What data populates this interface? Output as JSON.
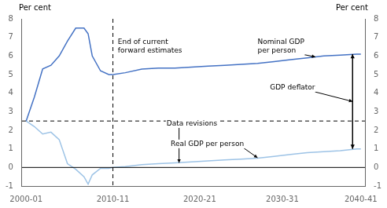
{
  "chart_data": {
    "type": "line",
    "ylabel": "Per cent",
    "y2label": "Per cent",
    "xlim": [
      -0.5,
      41
    ],
    "xticks": [
      {
        "value": 0,
        "label": "2000-01"
      },
      {
        "value": 10.5,
        "label": "2010-11"
      },
      {
        "value": 21,
        "label": "2020-21"
      },
      {
        "value": 31,
        "label": "2030-31"
      },
      {
        "value": 40.5,
        "label": "2040-41"
      }
    ],
    "ylim": [
      -1,
      8
    ],
    "yticks": [
      -1,
      0,
      1,
      2,
      3,
      4,
      5,
      6,
      7,
      8
    ],
    "y2lim": [
      -1,
      8
    ],
    "y2ticks": [
      -1,
      0,
      1,
      2,
      3,
      4,
      5,
      6,
      7,
      8
    ],
    "grid": false,
    "series": [
      {
        "color": "#4472C4",
        "x": [
          0,
          1,
          2,
          3,
          4,
          5,
          6,
          7,
          7.5,
          8,
          9,
          10,
          10.5
        ],
        "values": [
          2.5,
          3.8,
          5.3,
          5.5,
          6.0,
          6.8,
          7.5,
          7.5,
          7.2,
          6.0,
          5.2,
          5.0,
          5.0
        ]
      },
      {
        "color": "#4472C4",
        "x": [
          10.5,
          12,
          14,
          16,
          18,
          20,
          22,
          24,
          26,
          28,
          30,
          32,
          34,
          36,
          38,
          40,
          40.5
        ],
        "values": [
          5.0,
          5.1,
          5.3,
          5.35,
          5.35,
          5.4,
          5.45,
          5.5,
          5.55,
          5.6,
          5.7,
          5.8,
          5.9,
          6.0,
          6.05,
          6.1,
          6.1
        ]
      },
      {
        "color": "#9DC3E6",
        "x": [
          0,
          1,
          2,
          3,
          4,
          5,
          6,
          7,
          7.5,
          8,
          9,
          10,
          10.5
        ],
        "values": [
          2.5,
          2.2,
          1.8,
          1.9,
          1.5,
          0.2,
          -0.1,
          -0.5,
          -0.9,
          -0.4,
          -0.05,
          -0.05,
          0.0
        ]
      },
      {
        "color": "#9DC3E6",
        "x": [
          10.5,
          12,
          14,
          16,
          18,
          20,
          22,
          24,
          26,
          28,
          30,
          32,
          34,
          36,
          38,
          40,
          40.5
        ],
        "values": [
          0.0,
          0.05,
          0.15,
          0.2,
          0.25,
          0.3,
          0.35,
          0.4,
          0.45,
          0.5,
          0.6,
          0.7,
          0.8,
          0.85,
          0.9,
          1.0,
          1.0
        ]
      }
    ],
    "reference_lines": [
      {
        "axis": "y",
        "value": 2.5,
        "line_style": "dashed"
      },
      {
        "axis": "x",
        "value": 10.5,
        "line_style": "dashed"
      },
      {
        "axis": "y",
        "value": 0,
        "line_style": "solid"
      }
    ],
    "double_arrows": [
      {
        "x": 39.5,
        "y_from": 1.0,
        "y_to": 6.1
      }
    ],
    "annotations": [
      {
        "text": "End of current\nforward estimates",
        "x": 11.1,
        "y": 7.0,
        "anchor": "top"
      },
      {
        "text": "Nominal GDP\nper person",
        "x": 28,
        "y": 7.0,
        "anchor": "top",
        "arrow_x": 35,
        "arrow_y": 5.95
      },
      {
        "text": "Data revisions",
        "x": 17,
        "y": 2.6,
        "anchor": "top",
        "arrow_x": 18.5,
        "arrow_y": 0.25
      },
      {
        "text": "Real GDP per person",
        "x": 17.5,
        "y": 1.5,
        "anchor": "top",
        "arrow_x": 28,
        "arrow_y": 0.52
      },
      {
        "text": "GDP deflator",
        "x": 29.5,
        "y": 4.3,
        "anchor": "middle",
        "arrow_x": 39.5,
        "arrow_y": 3.55
      }
    ]
  }
}
